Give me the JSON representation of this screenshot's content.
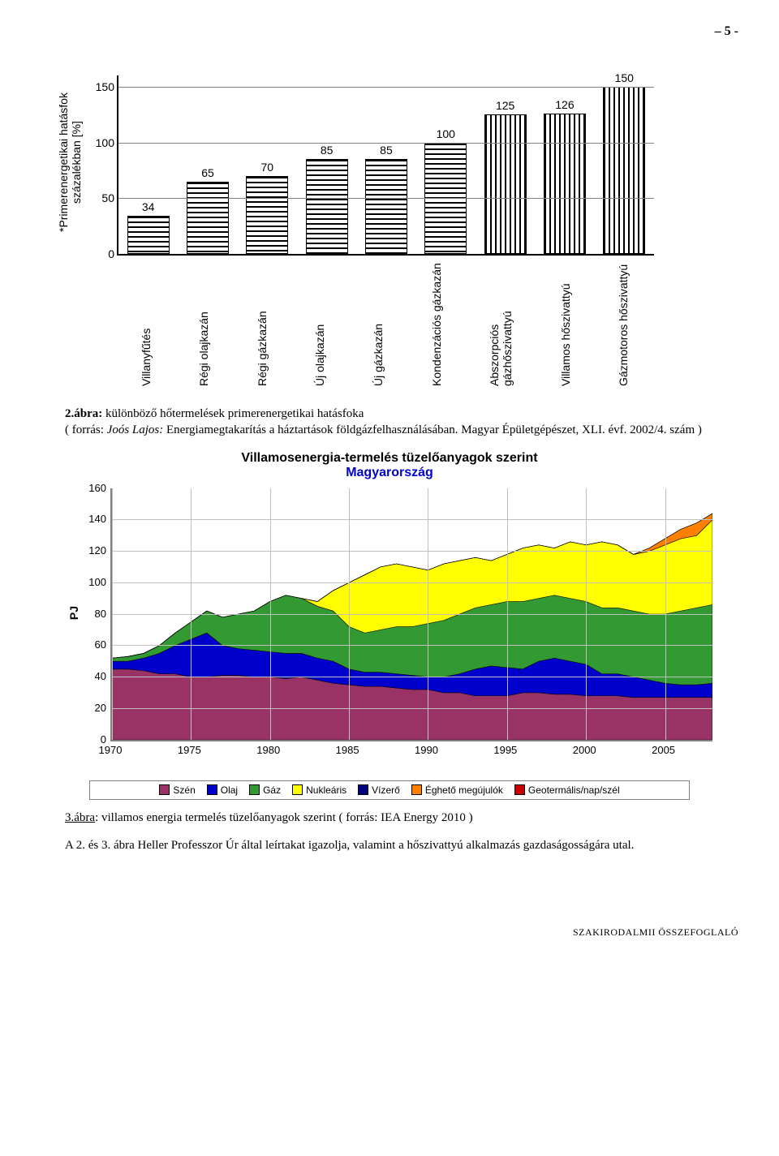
{
  "page_number_text": "–  5 -",
  "chart1": {
    "type": "bar",
    "ylabel": "*Primerenergetikai hatásfok százalékban [%]",
    "ymin": 0,
    "ymax": 160,
    "ytick_step": 50,
    "grid_color": "#808080",
    "categories": [
      "Villanyfűtés",
      "Régi olajkazán",
      "Régi gázkazán",
      "Új olajkazán",
      "Új gázkazán",
      "Kondenzációs gázkazán",
      "Abszorpciós gázhőszivattyú",
      "Villamos hőszivattyú",
      "Gázmotoros hőszivattyú"
    ],
    "values": [
      34,
      65,
      70,
      85,
      85,
      100,
      125,
      126,
      150
    ],
    "patterns": [
      "h",
      "h",
      "h",
      "h",
      "h",
      "h",
      "v",
      "v",
      "v"
    ],
    "bar_border_color": "#000000",
    "bg": "#ffffff"
  },
  "caption1": {
    "label": "2.ábra:",
    "title": " különböző hőtermelések primerenergetikai hatásfoka",
    "line2_prefix": "( forrás: ",
    "line2_italic": "Joós Lajos:",
    "line2_rest": " Energiamegtakarítás a háztartások földgázfelhasználásában. Magyar Épületgépészet, XLI. évf. 2002/4. szám )"
  },
  "chart2": {
    "type": "area",
    "title1": "Villamosenergia-termelés tüzelőanyagok szerint",
    "title2": "Magyarország",
    "ylabel": "PJ",
    "ymin": 0,
    "ymax": 160,
    "ytick_step": 20,
    "xmin": 1970,
    "xmax": 2008,
    "xtick_step": 5,
    "grid_color": "#c0c0c0",
    "series": [
      {
        "name": "Szén",
        "color": "#993366"
      },
      {
        "name": "Olaj",
        "color": "#0000cc"
      },
      {
        "name": "Gáz",
        "color": "#339933"
      },
      {
        "name": "Nukleáris",
        "color": "#ffff00"
      },
      {
        "name": "Vízerő",
        "color": "#000080"
      },
      {
        "name": "Éghető megújulók",
        "color": "#ff8000"
      },
      {
        "name": "Geotermális/nap/szél",
        "color": "#cc0000"
      }
    ],
    "stack_top_values": {
      "szen": [
        45,
        45,
        44,
        42,
        42,
        40,
        40,
        41,
        41,
        40,
        40,
        39,
        40,
        38,
        36,
        35,
        34,
        34,
        33,
        32,
        32,
        30,
        30,
        28,
        28,
        28,
        30,
        30,
        29,
        29,
        28,
        28,
        28,
        27,
        27,
        27,
        27,
        27,
        27
      ],
      "olaj": [
        50,
        50,
        52,
        55,
        60,
        64,
        68,
        60,
        58,
        57,
        56,
        55,
        55,
        52,
        50,
        45,
        43,
        43,
        42,
        41,
        40,
        40,
        42,
        45,
        47,
        46,
        45,
        50,
        52,
        50,
        48,
        42,
        42,
        40,
        38,
        36,
        35,
        35,
        36
      ],
      "gaz": [
        52,
        53,
        55,
        60,
        68,
        75,
        82,
        78,
        80,
        82,
        88,
        92,
        90,
        85,
        82,
        72,
        68,
        70,
        72,
        72,
        74,
        76,
        80,
        84,
        86,
        88,
        88,
        90,
        92,
        90,
        88,
        84,
        84,
        82,
        80,
        80,
        82,
        84,
        86
      ],
      "nukl": [
        52,
        53,
        55,
        60,
        68,
        75,
        82,
        78,
        80,
        82,
        88,
        92,
        90,
        88,
        95,
        100,
        105,
        110,
        112,
        110,
        108,
        112,
        114,
        116,
        114,
        118,
        122,
        124,
        122,
        126,
        124,
        126,
        124,
        118,
        120,
        124,
        128,
        130,
        140
      ],
      "viz": [
        52,
        53,
        55,
        60,
        68,
        75,
        82,
        78,
        80,
        82,
        88,
        92,
        90,
        88,
        95,
        100,
        105,
        110,
        112,
        110,
        108,
        112,
        114,
        116,
        114,
        118,
        122,
        124,
        122,
        126,
        124,
        126,
        124,
        118,
        120,
        124,
        128,
        130,
        140
      ],
      "megu": [
        52,
        53,
        55,
        60,
        68,
        75,
        82,
        78,
        80,
        82,
        88,
        92,
        90,
        88,
        95,
        100,
        105,
        110,
        112,
        110,
        108,
        112,
        114,
        116,
        114,
        118,
        122,
        124,
        122,
        126,
        124,
        126,
        124,
        118,
        122,
        128,
        134,
        138,
        144
      ],
      "geo": [
        52,
        53,
        55,
        60,
        68,
        75,
        82,
        78,
        80,
        82,
        88,
        92,
        90,
        88,
        95,
        100,
        105,
        110,
        112,
        110,
        108,
        112,
        114,
        116,
        114,
        118,
        122,
        124,
        122,
        126,
        124,
        126,
        124,
        118,
        122,
        128,
        134,
        138,
        144
      ]
    }
  },
  "caption2": {
    "label": "3.ábra",
    "rest": ": villamos energia termelés tüzelőanyagok szerint ( forrás: IEA Energy 2010 )"
  },
  "bodytext": "A 2. és 3. ábra Heller Professzor Úr által leírtakat igazolja, valamint a hőszivattyú alkalmazás gazdaságosságára utal.",
  "footer": "SZAKIRODALMII ÖSSZEFOGLALÓ"
}
